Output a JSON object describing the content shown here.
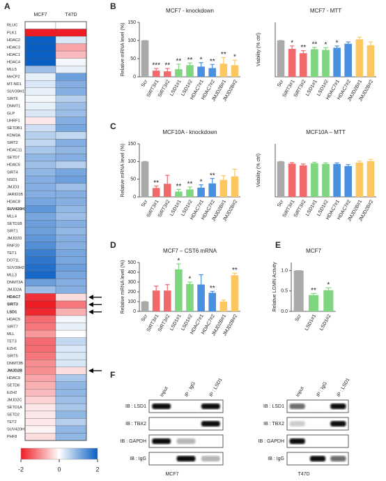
{
  "panel_labels": [
    "A",
    "B",
    "C",
    "D",
    "E",
    "F"
  ],
  "chart_data": [
    {
      "type": "heatmap",
      "columns": [
        "MCF7",
        "T47D"
      ],
      "rows": [
        "RLUC",
        "PLK1",
        "HDAC2",
        "HDAC3",
        "HDAC1",
        "HDAC4",
        "MLL5",
        "MeCP2",
        "MT-ND1",
        "SUV39H1",
        "SIRT6",
        "DNMT1",
        "GLP",
        "UHRF1",
        "SETDB1",
        "KDM3A",
        "SIRT2",
        "HDAC11",
        "SETD7",
        "HDAC6",
        "SIRT4",
        "NSD1",
        "JMJD3",
        "JARID1B",
        "HDAC8",
        "SUV420H1",
        "MLL4",
        "SETD1B",
        "SIRT1",
        "JMJD2D",
        "RNF20",
        "TET1",
        "DOT1L",
        "SUV39H2",
        "MLL3",
        "DNMT3A",
        "JMJD2A",
        "HDAC7",
        "SIRT3",
        "LSD1",
        "HDAC5",
        "SIRT7",
        "MLL",
        "TET3",
        "EZH1",
        "SIRT5",
        "DNMT3B",
        "JMJD2B",
        "HDAC9",
        "SETD8",
        "EZH2",
        "JMJD2C",
        "SETD1A",
        "SETD2",
        "TET2",
        "SUV420H2",
        "PHF8"
      ],
      "values": [
        [
          0,
          0
        ],
        [
          -2,
          -2
        ],
        [
          2,
          0.3
        ],
        [
          2,
          -0.8
        ],
        [
          2,
          -0.6
        ],
        [
          2,
          0.1
        ],
        [
          0.8,
          0.2
        ],
        [
          0.2,
          1.2
        ],
        [
          0.3,
          1.0
        ],
        [
          0.2,
          1.0
        ],
        [
          0.1,
          0.6
        ],
        [
          0.2,
          0.8
        ],
        [
          0.3,
          0.8
        ],
        [
          -0.2,
          1.0
        ],
        [
          0.4,
          1.1
        ],
        [
          0.6,
          0.5
        ],
        [
          0.5,
          1.0
        ],
        [
          0.7,
          0.9
        ],
        [
          0.9,
          1.0
        ],
        [
          0.8,
          0.6
        ],
        [
          0.9,
          1.1
        ],
        [
          1.0,
          1.2
        ],
        [
          1.0,
          0.8
        ],
        [
          1.0,
          1.0
        ],
        [
          1.1,
          1.0
        ],
        [
          1.3,
          0.9
        ],
        [
          1.1,
          0.8
        ],
        [
          1.2,
          1.0
        ],
        [
          1.2,
          0.9
        ],
        [
          1.3,
          1.0
        ],
        [
          1.4,
          1.0
        ],
        [
          1.6,
          1.1
        ],
        [
          1.7,
          1.1
        ],
        [
          1.8,
          1.2
        ],
        [
          1.9,
          1.1
        ],
        [
          1.2,
          1.0
        ],
        [
          0.8,
          1.0
        ],
        [
          -1.8,
          -0.3
        ],
        [
          -2,
          -1.2
        ],
        [
          -1.9,
          -0.7
        ],
        [
          -1.3,
          0.1
        ],
        [
          -1.2,
          0.2
        ],
        [
          -0.9,
          0
        ],
        [
          -1.3,
          0.5
        ],
        [
          -1.3,
          0.3
        ],
        [
          -1.2,
          0.3
        ],
        [
          -1.0,
          0.3
        ],
        [
          -1.0,
          -0.3
        ],
        [
          -0.8,
          0.7
        ],
        [
          -0.7,
          0.9
        ],
        [
          -0.6,
          0.9
        ],
        [
          -0.4,
          0.8
        ],
        [
          -0.2,
          0.7
        ],
        [
          -0.2,
          0.9
        ],
        [
          -0.2,
          0.6
        ],
        [
          -0.1,
          0.9
        ],
        [
          -0.3,
          0.9
        ]
      ],
      "bold_rows": [
        25,
        37,
        38,
        39,
        47
      ],
      "arrow_rows": [
        37,
        38,
        39,
        47
      ],
      "zlim": [
        -2,
        2
      ],
      "zticks": [
        -2,
        0,
        2
      ],
      "colorscale": [
        "#ee1c25",
        "#ffffff",
        "#0a5fc4"
      ]
    },
    {
      "type": "bar",
      "title": "MCF7 - knockdown",
      "ylabel": "Relative mRNA level (%)",
      "categories": [
        "Scr",
        "SIRT3#1",
        "SIRT3#2",
        "LSD1#1",
        "LSD1#2",
        "HDAC7#1",
        "HDAC7#2",
        "JMJD2B#1",
        "JMJD2B#2"
      ],
      "values": [
        100,
        17,
        15,
        21,
        32,
        28,
        24,
        36,
        32
      ],
      "errors": [
        0,
        6,
        8,
        14,
        6,
        11,
        10,
        17,
        14
      ],
      "annotations": [
        null,
        "***",
        "**",
        "**",
        "**",
        "*",
        "**",
        "**",
        "*"
      ],
      "colors": [
        "#aaaaaa",
        "#f0696b",
        "#f0696b",
        "#7ed67e",
        "#7ed67e",
        "#4a90e0",
        "#4a90e0",
        "#fdc760",
        "#fdc760"
      ],
      "ylim": [
        0,
        150
      ],
      "yticks": [
        0,
        50,
        100,
        150
      ]
    },
    {
      "type": "bar",
      "title": "MCF7 - MTT",
      "ylabel": "Viability (% ctrl)",
      "categories": [
        "Scr",
        "SIRT3#1",
        "SIRT3#2",
        "LSD1#1",
        "LSD1#2",
        "HDAC7#1",
        "HDAC7#2",
        "JMJD2B#1",
        "JMJD2B#2"
      ],
      "values": [
        100,
        77,
        65,
        76,
        74,
        80,
        91,
        103,
        87
      ],
      "errors": [
        0,
        8,
        7,
        5,
        6,
        5,
        5,
        6,
        9
      ],
      "annotations": [
        null,
        "*",
        "**",
        "**",
        "*",
        "*",
        null,
        null,
        null
      ],
      "colors": [
        "#aaaaaa",
        "#f0696b",
        "#f0696b",
        "#7ed67e",
        "#7ed67e",
        "#4a90e0",
        "#4a90e0",
        "#fdc760",
        "#fdc760"
      ],
      "ylim": [
        0,
        150
      ]
    },
    {
      "type": "bar",
      "title": "MCF10A - knockdown",
      "ylabel": "Relative mRNA level (%)",
      "categories": [
        "Scr",
        "SIRT3#1",
        "SIRT3#2",
        "LSD1#1",
        "LSD1#2",
        "HDAC7#1",
        "HDAC7#2",
        "JMJD2B#1",
        "JMJD2B#2"
      ],
      "values": [
        100,
        25,
        37,
        15,
        21,
        26,
        38,
        48,
        58
      ],
      "errors": [
        0,
        6,
        24,
        6,
        7,
        8,
        14,
        12,
        20
      ],
      "annotations": [
        null,
        "**",
        null,
        "**",
        "**",
        "*",
        "**",
        null,
        null
      ],
      "colors": [
        "#aaaaaa",
        "#f0696b",
        "#f0696b",
        "#7ed67e",
        "#7ed67e",
        "#4a90e0",
        "#4a90e0",
        "#fdc760",
        "#fdc760"
      ],
      "ylim": [
        0,
        150
      ],
      "yticks": [
        0,
        50,
        100,
        150
      ]
    },
    {
      "type": "bar",
      "title": "MCF10A – MTT",
      "ylabel": "Viability (% ctrl)",
      "categories": [
        "Scr",
        "SIRT3#1",
        "SIRT3#2",
        "LSD1#1",
        "LSD1#2",
        "HDAC7#1",
        "HDAC7#2",
        "JMJD2B#1",
        "JMJD2B#2"
      ],
      "values": [
        100,
        94,
        89,
        95,
        93,
        93,
        87,
        97,
        101
      ],
      "errors": [
        0,
        3,
        4,
        3,
        3,
        3,
        4,
        4,
        5
      ],
      "colors": [
        "#aaaaaa",
        "#f0696b",
        "#f0696b",
        "#7ed67e",
        "#7ed67e",
        "#4a90e0",
        "#4a90e0",
        "#fdc760",
        "#fdc760"
      ],
      "ylim": [
        0,
        150
      ]
    },
    {
      "type": "bar",
      "title": "MCF7 – CST6 mRNA",
      "ylabel": "Relative mRNA level (%)",
      "categories": [
        "Scr",
        "SIRT3#1",
        "SIRT3#2",
        "LSD1#1",
        "LSD1#2",
        "HDAC7#1",
        "HDAC7#2",
        "JMJD2B#1",
        "JMJD2B#2"
      ],
      "values": [
        100,
        213,
        213,
        430,
        280,
        275,
        190,
        100,
        370
      ],
      "errors": [
        0,
        45,
        60,
        55,
        20,
        100,
        15,
        15,
        20
      ],
      "annotations": [
        null,
        null,
        null,
        "*",
        "*",
        null,
        "**",
        null,
        "**"
      ],
      "colors": [
        "#aaaaaa",
        "#f0696b",
        "#f0696b",
        "#7ed67e",
        "#7ed67e",
        "#4a90e0",
        "#4a90e0",
        "#fdc760",
        "#fdc760"
      ],
      "ylim": [
        0,
        500
      ],
      "yticks": [
        0,
        100,
        200,
        300,
        400,
        500
      ]
    },
    {
      "type": "bar",
      "title": "MCF7",
      "ylabel": "Relative LGMN Activity",
      "categories": [
        "Scr",
        "LSD1#1",
        "LSD1#2"
      ],
      "values": [
        1.0,
        0.4,
        0.52
      ],
      "errors": [
        0,
        0.04,
        0.06
      ],
      "annotations": [
        null,
        "**",
        "*"
      ],
      "colors": [
        "#aaaaaa",
        "#7ed67e",
        "#7ed67e"
      ],
      "ylim": [
        0,
        1.2
      ],
      "yticks": [
        {
          "value": 0,
          "label": "0.0"
        },
        0.5,
        {
          "value": 1,
          "label": "1.0"
        }
      ]
    }
  ],
  "blots": [
    {
      "caption": "MCF7",
      "columns": [
        "Input",
        "IP : IgG",
        "IP : LSD1"
      ],
      "rows": [
        "IB : LSD1",
        "IB : TBX2",
        "IB : GAPDH",
        "IB : IgG"
      ]
    },
    {
      "caption": "T47D",
      "columns": [
        "Input",
        "IP : IgG",
        "IP : LSD1"
      ],
      "rows": [
        "IB : LSD1",
        "IB : TBX2",
        "IB : GAPDH",
        "IB : IgG"
      ]
    }
  ]
}
